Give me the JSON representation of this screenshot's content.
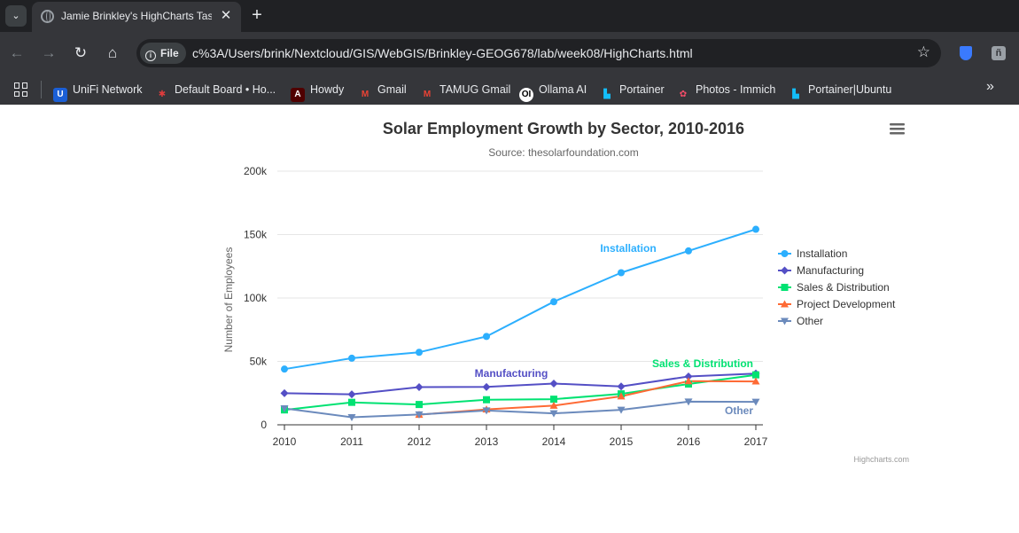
{
  "browser": {
    "tab_title": "Jamie Brinkley's HighCharts Tas",
    "url_scheme": "File",
    "url": "c%3A/Users/brink/Nextcloud/GIS/WebGIS/Brinkley-GEOG678/lab/week08/HighCharts.html",
    "bookmarks": [
      {
        "label": "UniFi Network",
        "icon": "unifi-icon",
        "color": "#1b5fd6",
        "glyph": "U"
      },
      {
        "label": "Default Board • Ho...",
        "icon": "board-icon",
        "color": "#e03c3c",
        "glyph": "✱"
      },
      {
        "label": "Howdy",
        "icon": "tamu-icon",
        "color": "#500000",
        "glyph": "A"
      },
      {
        "label": "Gmail",
        "icon": "gmail-icon",
        "color": "#ea4335",
        "glyph": "M"
      },
      {
        "label": "TAMUG Gmail",
        "icon": "gmail-icon",
        "color": "#ea4335",
        "glyph": "M"
      },
      {
        "label": "Ollama AI",
        "icon": "ollama-icon",
        "color": "#ffffff",
        "glyph": "OI"
      },
      {
        "label": "Portainer",
        "icon": "portainer-icon",
        "color": "#13bef9",
        "glyph": "▙"
      },
      {
        "label": "Photos - Immich",
        "icon": "immich-icon",
        "color": "#fa4d6a",
        "glyph": "✿"
      },
      {
        "label": "Portainer|Ubuntu",
        "icon": "portainer-icon",
        "color": "#13bef9",
        "glyph": "▙"
      }
    ]
  },
  "chart_data": {
    "type": "line",
    "title": "Solar Employment Growth by Sector, 2010-2016",
    "subtitle": "Source: thesolarfoundation.com",
    "ylabel": "Number of Employees",
    "xlabel": "",
    "x": [
      2010,
      2011,
      2012,
      2013,
      2014,
      2015,
      2016,
      2017
    ],
    "ylim": [
      0,
      200000
    ],
    "yticks": [
      0,
      50000,
      100000,
      150000,
      200000
    ],
    "ytick_labels": [
      "0",
      "50k",
      "100k",
      "150k",
      "200k"
    ],
    "grid": true,
    "legend_position": "right",
    "credits": "Highcharts.com",
    "series": [
      {
        "name": "Installation",
        "color": "#2caffe",
        "marker": "circle",
        "values": [
          43934,
          52503,
          57177,
          69658,
          97031,
          119931,
          137133,
          154175
        ]
      },
      {
        "name": "Manufacturing",
        "color": "#544fc5",
        "marker": "diamond",
        "values": [
          24916,
          24064,
          29742,
          29851,
          32490,
          30282,
          38121,
          40434
        ]
      },
      {
        "name": "Sales & Distribution",
        "color": "#00e272",
        "marker": "square",
        "values": [
          11744,
          17722,
          16005,
          19771,
          20185,
          24377,
          32147,
          39387
        ]
      },
      {
        "name": "Project Development",
        "color": "#fe6a35",
        "marker": "triangle",
        "values": [
          null,
          null,
          7988,
          12169,
          15112,
          22452,
          34400,
          34227
        ]
      },
      {
        "name": "Other",
        "color": "#6b8abc",
        "marker": "triangle-down",
        "values": [
          12908,
          5948,
          8105,
          11248,
          8989,
          11816,
          18274,
          18111
        ]
      }
    ],
    "annotations": [
      {
        "text": "Installation",
        "color": "#2caffe"
      },
      {
        "text": "Manufacturing",
        "color": "#544fc5"
      },
      {
        "text": "Sales & Distribution",
        "color": "#00e272"
      },
      {
        "text": "Other",
        "color": "#6b8abc"
      }
    ]
  }
}
